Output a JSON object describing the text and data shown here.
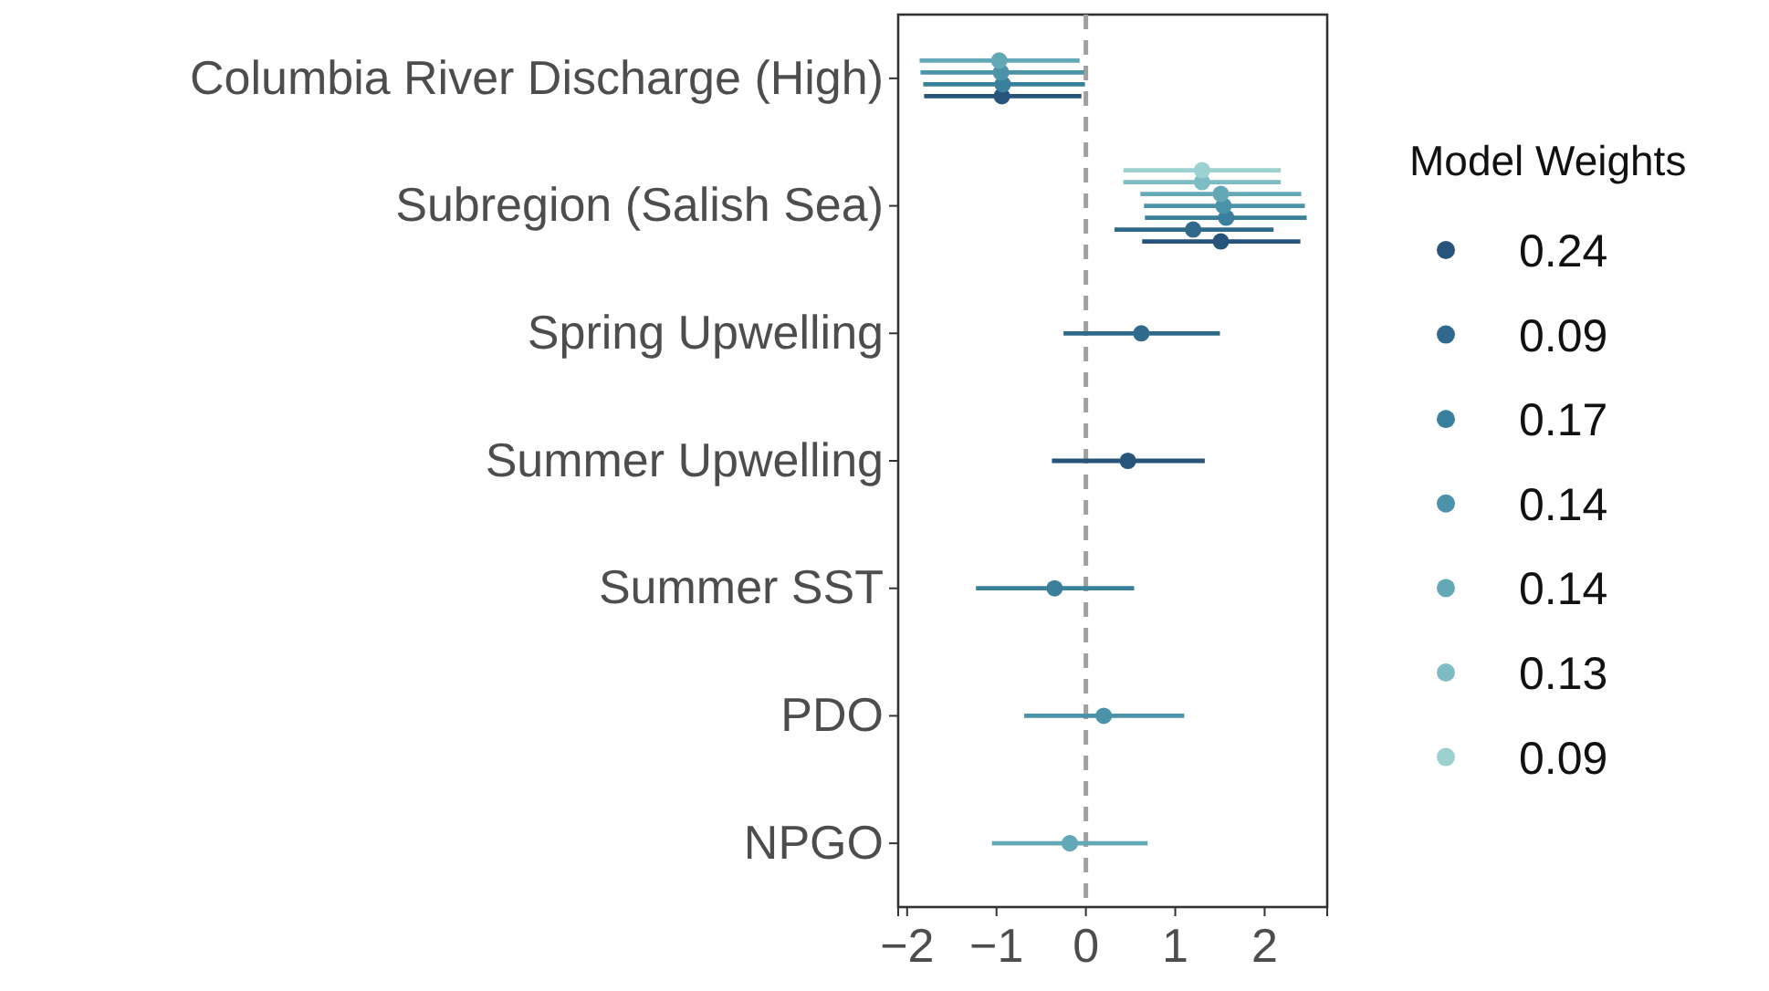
{
  "chart_data": {
    "type": "scatter",
    "orientation": "horizontal",
    "legend_title": "Model Weights",
    "legend": "right",
    "grid": false,
    "marker": "circle",
    "categories": [
      "Columbia River Discharge (High)",
      "Subregion (Salish Sea)",
      "Spring Upwelling",
      "Summer Upwelling",
      "Summer SST",
      "PDO",
      "NPGO"
    ],
    "xlim": [
      -2.1,
      2.7
    ],
    "xticks": [
      {
        "value": -2,
        "label": "−2"
      },
      {
        "value": -1,
        "label": "−1"
      },
      0,
      1,
      2
    ],
    "ref_lines": [
      {
        "axis": "x",
        "value": 0,
        "color": "#a0a0a0",
        "line_style": "dashed"
      }
    ],
    "series": [
      {
        "name": "0.24",
        "color": "#26547a",
        "values": [
          -0.94,
          1.51,
          null,
          0.47,
          null,
          null,
          null
        ],
        "errors": [
          [
            -1.81,
            -0.05
          ],
          [
            0.63,
            2.4
          ],
          null,
          [
            -0.38,
            1.33
          ],
          null,
          null,
          null
        ]
      },
      {
        "name": "0.09",
        "color": "#2f6a8c",
        "values": [
          null,
          1.2,
          0.62,
          null,
          null,
          null,
          null
        ],
        "errors": [
          null,
          [
            0.32,
            2.1
          ],
          [
            -0.25,
            1.5
          ],
          null,
          null,
          null,
          null
        ]
      },
      {
        "name": "0.17",
        "color": "#3a7f9b",
        "values": [
          -0.93,
          1.57,
          null,
          null,
          -0.35,
          null,
          null
        ],
        "errors": [
          [
            -1.82,
            -0.01
          ],
          [
            0.66,
            2.47
          ],
          null,
          null,
          [
            -1.23,
            0.54
          ],
          null,
          null
        ]
      },
      {
        "name": "0.14",
        "color": "#4b93a8",
        "values": [
          -0.95,
          1.54,
          null,
          null,
          null,
          0.2,
          null
        ],
        "errors": [
          [
            -1.85,
            -0.02
          ],
          [
            0.65,
            2.45
          ],
          null,
          null,
          null,
          [
            -0.69,
            1.1
          ],
          null
        ]
      },
      {
        "name": "0.14",
        "color": "#62a8b6",
        "values": [
          -0.97,
          1.51,
          null,
          null,
          null,
          null,
          -0.18
        ],
        "errors": [
          [
            -1.86,
            -0.07
          ],
          [
            0.61,
            2.41
          ],
          null,
          null,
          null,
          null,
          [
            -1.05,
            0.69
          ]
        ]
      },
      {
        "name": "0.13",
        "color": "#7dbcc4",
        "values": [
          null,
          1.3,
          null,
          null,
          null,
          null,
          null
        ],
        "errors": [
          null,
          [
            0.42,
            2.18
          ],
          null,
          null,
          null,
          null,
          null
        ]
      },
      {
        "name": "0.09",
        "color": "#9bd1d1",
        "values": [
          null,
          1.3,
          null,
          null,
          null,
          null,
          null
        ],
        "errors": [
          null,
          [
            0.42,
            2.18
          ],
          null,
          null,
          null,
          null,
          null
        ]
      }
    ]
  }
}
